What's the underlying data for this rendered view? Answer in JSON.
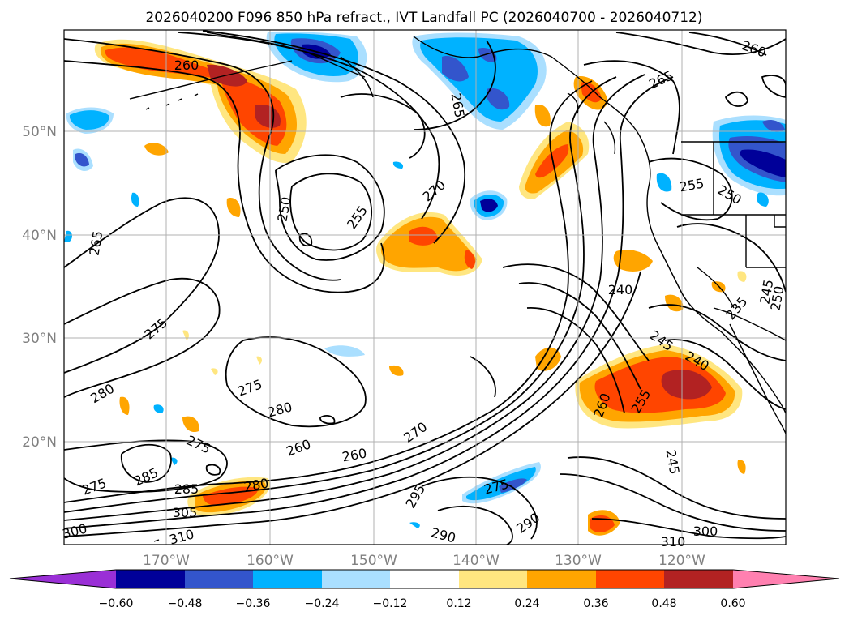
{
  "figure": {
    "title": "2026040200 F096 850 hPa refract., IVT Landfall PC (2026040700 - 2026040712)"
  },
  "map": {
    "lat_ticks": [
      "50°N",
      "40°N",
      "30°N",
      "20°N"
    ],
    "lon_ticks": [
      "170°W",
      "160°W",
      "150°W",
      "140°W",
      "130°W",
      "120°W"
    ]
  },
  "colorbar": {
    "ticks": [
      "−0.60",
      "−0.48",
      "−0.36",
      "−0.24",
      "−0.12",
      "0.12",
      "0.24",
      "0.36",
      "0.48",
      "0.60"
    ],
    "colors": [
      "#9a2fd6",
      "#000099",
      "#3355cc",
      "#00b2ff",
      "#aadfff",
      "#ffffff",
      "#ffe680",
      "#ffa500",
      "#ff4500",
      "#b22222",
      "#ff80b0"
    ]
  },
  "contour_labels": [
    {
      "text": "260",
      "id": "c1"
    },
    {
      "text": "265",
      "id": "c2"
    },
    {
      "text": "265",
      "id": "c3"
    },
    {
      "text": "265",
      "id": "c4"
    },
    {
      "text": "260",
      "id": "c5"
    },
    {
      "text": "250",
      "id": "c6"
    },
    {
      "text": "255",
      "id": "c7"
    },
    {
      "text": "270",
      "id": "c8"
    },
    {
      "text": "255",
      "id": "c9"
    },
    {
      "text": "250",
      "id": "c10"
    },
    {
      "text": "240",
      "id": "c11"
    },
    {
      "text": "275",
      "id": "c12"
    },
    {
      "text": "280",
      "id": "c13"
    },
    {
      "text": "275",
      "id": "c14"
    },
    {
      "text": "280",
      "id": "c15"
    },
    {
      "text": "275",
      "id": "c16"
    },
    {
      "text": "260",
      "id": "c17"
    },
    {
      "text": "260",
      "id": "c18"
    },
    {
      "text": "270",
      "id": "c19"
    },
    {
      "text": "275",
      "id": "c20"
    },
    {
      "text": "285",
      "id": "c21"
    },
    {
      "text": "285",
      "id": "c22"
    },
    {
      "text": "280",
      "id": "c23"
    },
    {
      "text": "305",
      "id": "c24"
    },
    {
      "text": "310",
      "id": "c25"
    },
    {
      "text": "300",
      "id": "c26"
    },
    {
      "text": "295",
      "id": "c27"
    },
    {
      "text": "275",
      "id": "c28"
    },
    {
      "text": "290",
      "id": "c29"
    },
    {
      "text": "290",
      "id": "c30"
    },
    {
      "text": "245",
      "id": "c31"
    },
    {
      "text": "240",
      "id": "c32"
    },
    {
      "text": "260",
      "id": "c33"
    },
    {
      "text": "255",
      "id": "c34"
    },
    {
      "text": "245",
      "id": "c35"
    },
    {
      "text": "235",
      "id": "c36"
    },
    {
      "text": "245",
      "id": "c37"
    },
    {
      "text": "250",
      "id": "c38"
    },
    {
      "text": "300",
      "id": "c39"
    },
    {
      "text": "310",
      "id": "c40"
    }
  ]
}
